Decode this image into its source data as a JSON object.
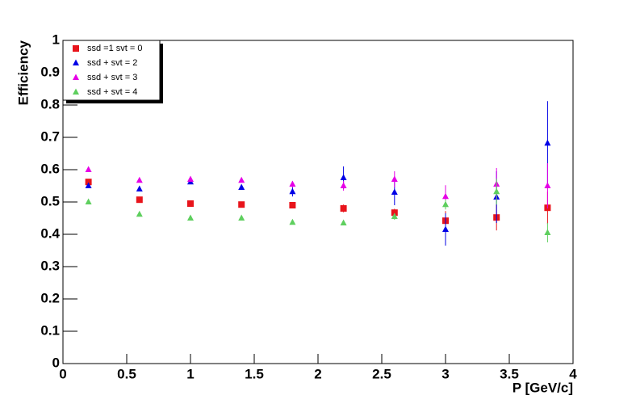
{
  "chart_data": {
    "type": "scatter",
    "x_label": "P [GeV/c]",
    "y_label": "Efficiency",
    "x": [
      0.2,
      0.6,
      1.0,
      1.4,
      1.8,
      2.2,
      2.6,
      3.0,
      3.4,
      3.8
    ],
    "series": [
      {
        "name": "ssd =1 svt = 0",
        "color": "#e8141b",
        "marker": "square",
        "values": [
          0.562,
          0.507,
          0.495,
          0.492,
          0.49,
          0.48,
          0.467,
          0.442,
          0.452,
          0.482
        ],
        "errors": [
          0.005,
          0.005,
          0.005,
          0.005,
          0.006,
          0.012,
          0.012,
          0.03,
          0.04,
          0.05
        ]
      },
      {
        "name": "ssd + svt = 2",
        "color": "#0000e6",
        "marker": "triangle",
        "values": [
          0.55,
          0.54,
          0.562,
          0.545,
          0.532,
          0.575,
          0.53,
          0.415,
          0.515,
          0.682
        ],
        "errors": [
          0.005,
          0.005,
          0.006,
          0.006,
          0.015,
          0.035,
          0.04,
          0.05,
          0.08,
          0.13
        ]
      },
      {
        "name": "ssd + svt = 3",
        "color": "#e600e6",
        "marker": "triangle",
        "values": [
          0.6,
          0.567,
          0.57,
          0.567,
          0.555,
          0.55,
          0.57,
          0.517,
          0.555,
          0.55
        ],
        "errors": [
          0.004,
          0.004,
          0.005,
          0.006,
          0.01,
          0.015,
          0.025,
          0.035,
          0.05,
          0.07
        ]
      },
      {
        "name": "ssd + svt = 4",
        "color": "#5ecf5e",
        "marker": "triangle",
        "values": [
          0.5,
          0.462,
          0.45,
          0.45,
          0.437,
          0.435,
          0.455,
          0.492,
          0.532,
          0.405
        ],
        "errors": [
          0.004,
          0.004,
          0.004,
          0.005,
          0.005,
          0.006,
          0.01,
          0.015,
          0.04,
          0.03
        ]
      }
    ],
    "xlim": [
      0,
      4
    ],
    "xticks": [
      0,
      0.5,
      1,
      1.5,
      2,
      2.5,
      3,
      3.5,
      4
    ],
    "ylim": [
      0,
      1
    ],
    "yticks": [
      0,
      0.1,
      0.2,
      0.3,
      0.4,
      0.5,
      0.6,
      0.7,
      0.8,
      0.9,
      1
    ],
    "legend": "upper-left"
  }
}
